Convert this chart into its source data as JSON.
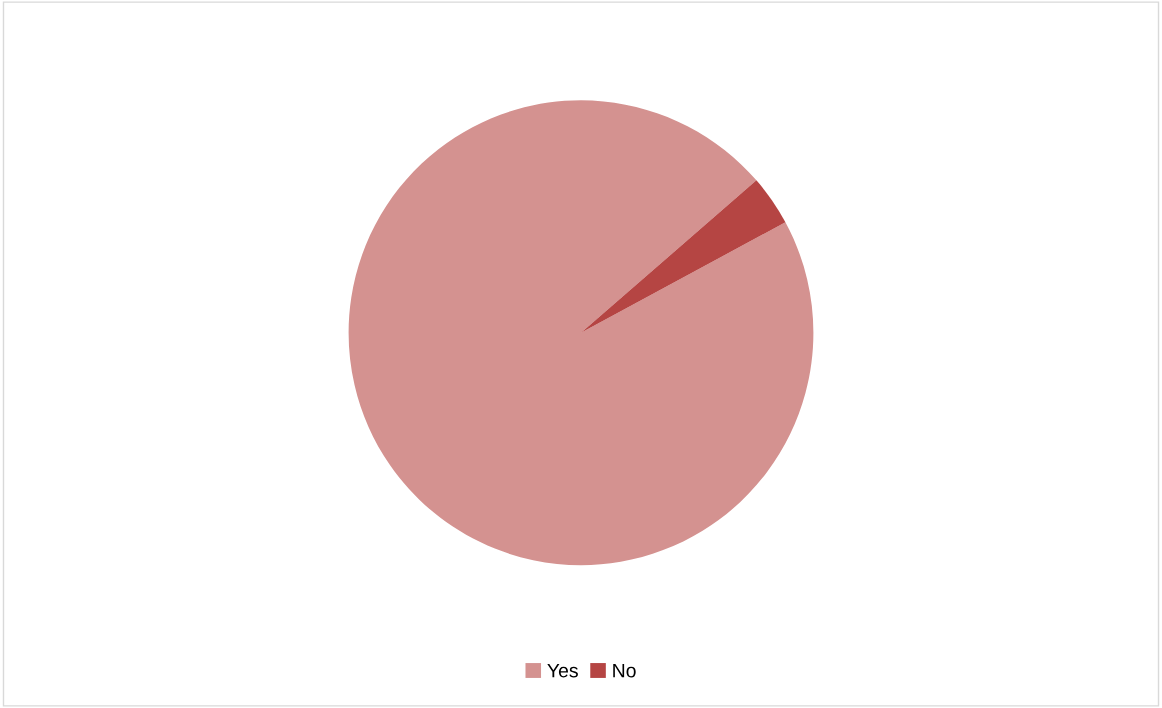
{
  "chart_data": {
    "type": "pie",
    "categories": [
      "Yes",
      "No"
    ],
    "values": [
      96.5,
      3.5
    ],
    "colors": [
      "#d49290",
      "#b54543"
    ],
    "legend": "bottom"
  }
}
